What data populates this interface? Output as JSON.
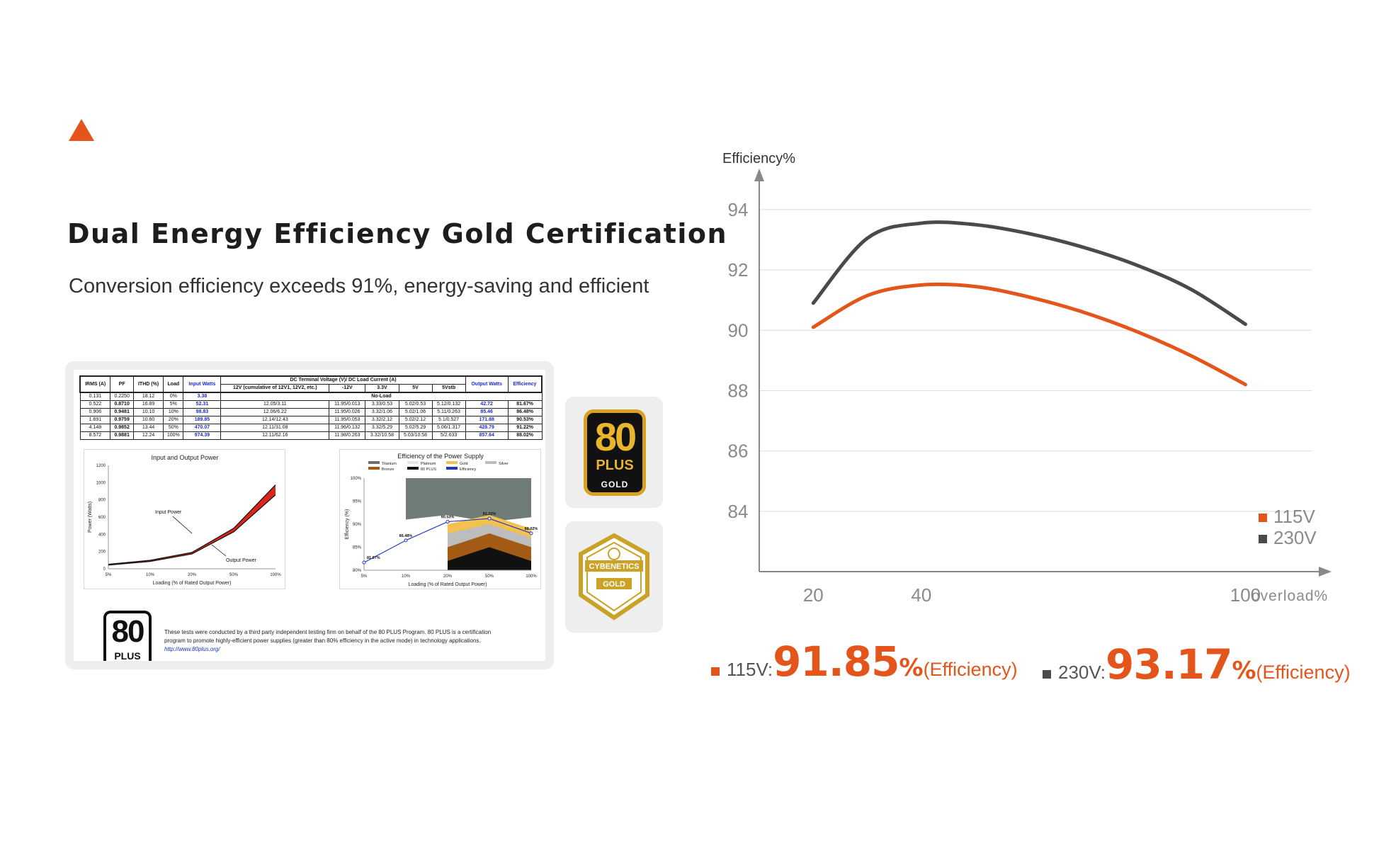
{
  "header": {
    "title": "Dual Energy Efficiency Gold Certification",
    "subtitle": "Conversion efficiency exceeds 91%, energy-saving and efficient",
    "accent_color": "#e4551c",
    "marker_icon": "triangle-icon"
  },
  "report": {
    "table_headers": {
      "irms": "IRMS (A)",
      "pf": "PF",
      "ithd": "ITHD (%)",
      "load": "Load",
      "input_watts": "Input Watts",
      "dc_group": "DC Terminal Voltage (V)/ DC Load Current (A)",
      "v12": "12V (cumulative of 12V1, 12V2, etc.)",
      "neg12": "-12V",
      "v33": "3.3V",
      "v5": "5V",
      "v5stb": "5Vstb",
      "output_watts": "Output Watts",
      "efficiency": "Efficiency"
    },
    "no_load_label": "No-Load",
    "no_load_row": {
      "irms": "0.131",
      "pf": "0.2250",
      "ithd": "18.12",
      "load": "0%",
      "input": "3.38"
    },
    "rows": [
      {
        "irms": "0.522",
        "pf": "0.8710",
        "ithd": "16.89",
        "load": "5%",
        "input": "52.31",
        "v12": "12.05/3.11",
        "neg12": "11.95/0.013",
        "v33": "3.33/0.53",
        "v5": "5.02/0.53",
        "v5stb": "5.12/0.132",
        "output": "42.72",
        "eff": "81.67%"
      },
      {
        "irms": "0.906",
        "pf": "0.9481",
        "ithd": "10.10",
        "load": "10%",
        "input": "98.83",
        "v12": "12.06/6.22",
        "neg12": "11.95/0.026",
        "v33": "3.32/1.06",
        "v5": "5.02/1.06",
        "v5stb": "5.11/0.263",
        "output": "85.46",
        "eff": "86.48%"
      },
      {
        "irms": "1.691",
        "pf": "0.9759",
        "ithd": "10.60",
        "load": "20%",
        "input": "189.85",
        "v12": "12.14/12.43",
        "neg12": "11.95/0.053",
        "v33": "3.32/2.12",
        "v5": "5.02/2.12",
        "v5stb": "5.1/0.527",
        "output": "171.88",
        "eff": "90.53%"
      },
      {
        "irms": "4.148",
        "pf": "0.9852",
        "ithd": "13.44",
        "load": "50%",
        "input": "470.07",
        "v12": "12.11/31.08",
        "neg12": "11.96/0.132",
        "v33": "3.32/5.29",
        "v5": "5.02/5.29",
        "v5stb": "5.06/1.317",
        "output": "428.79",
        "eff": "91.22%"
      },
      {
        "irms": "8.572",
        "pf": "0.9881",
        "ithd": "12.24",
        "load": "100%",
        "input": "974.39",
        "v12": "12.11/62.16",
        "neg12": "11.98/0.263",
        "v33": "3.32/10.58",
        "v5": "5.03/10.58",
        "v5stb": "5/2.633",
        "output": "857.64",
        "eff": "88.02%"
      }
    ],
    "power_chart": {
      "title": "Input and Output Power",
      "ylabel": "Power (Watts)",
      "xlabel": "Loading (% of Rated Output Power)",
      "annotation_input": "Input Power",
      "annotation_output": "Output Power",
      "y_ticks": [
        "1200",
        "1000",
        "800",
        "600",
        "400",
        "200",
        "0"
      ],
      "x_ticks": [
        "5%",
        "10%",
        "20%",
        "50%",
        "100%"
      ]
    },
    "eff_chart": {
      "title": "Efficiency of the Power Supply",
      "ylabel": "Efficiency (%)",
      "xlabel": "Loading (% of Rated Output Power)",
      "legend": [
        "Titanium",
        "Platinum",
        "Gold",
        "Silver",
        "Bronze",
        "80 PLUS",
        "Efficiency"
      ],
      "y_ticks": [
        "100%",
        "95%",
        "90%",
        "85%",
        "80%"
      ],
      "x_ticks": [
        "5%",
        "10%",
        "20%",
        "50%",
        "100%"
      ],
      "point_labels": [
        "81.67%",
        "86.48%",
        "90.53%",
        "91.22%",
        "88.02%"
      ]
    },
    "logo_number": "80",
    "logo_word": "PLUS",
    "disclaimer": "These tests were conducted by a third party independent testing firm on behalf of the 80 PLUS Program. 80 PLUS is a certification program to promote highly-efficient power supplies (greater than 80% efficiency in the active mode) in technology applications.",
    "disclaimer_link": "http://www.80plus.org/"
  },
  "badges": {
    "plus_gold": {
      "number": "80",
      "word": "PLUS",
      "tier": "GOLD"
    },
    "cybenetics": {
      "name": "CYBENETICS",
      "tier": "GOLD"
    }
  },
  "chart_data": {
    "type": "line",
    "ylabel": "Efficiency%",
    "xlabel": "overload%",
    "y_ticks": [
      94,
      92,
      90,
      88,
      86,
      84
    ],
    "x_ticks": [
      20,
      40,
      100
    ],
    "grid": true,
    "legend_position": "bottom-right",
    "series": [
      {
        "name": "115V",
        "color": "#e4551c",
        "x": [
          20,
          30,
          40,
          50,
          60,
          70,
          80,
          90,
          100
        ],
        "y": [
          90.1,
          91.15,
          91.5,
          91.45,
          91.1,
          90.6,
          89.95,
          89.15,
          88.2
        ]
      },
      {
        "name": "230V",
        "color": "#4a4a4a",
        "x": [
          20,
          30,
          40,
          50,
          60,
          70,
          80,
          90,
          100
        ],
        "y": [
          90.9,
          93.05,
          93.55,
          93.5,
          93.2,
          92.75,
          92.15,
          91.35,
          90.2
        ]
      }
    ],
    "ylim": [
      82,
      95.5
    ]
  },
  "readouts": [
    {
      "volt": "115V:",
      "value": "91.85",
      "pct": "%",
      "note": "(Efficiency)",
      "color": "#e4551c"
    },
    {
      "volt": "230V:",
      "value": "93.17",
      "pct": "%",
      "note": "(Efficiency)",
      "color": "#4a4a4a"
    }
  ]
}
